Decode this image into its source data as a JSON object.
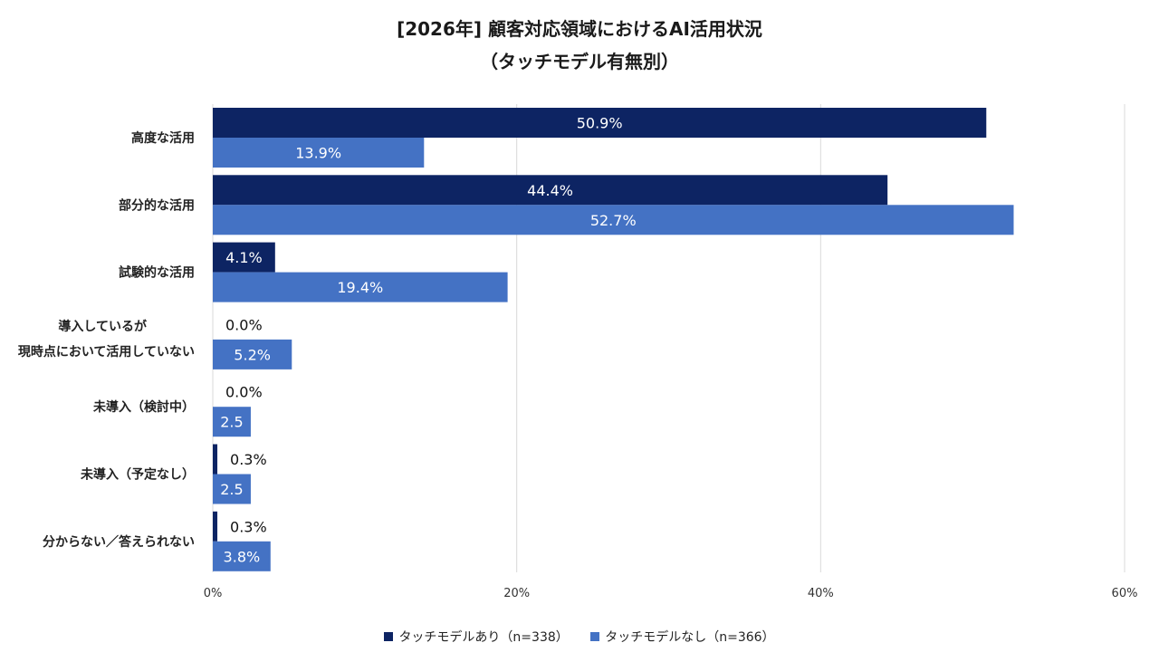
{
  "chart_data": {
    "type": "bar",
    "orientation": "horizontal",
    "title": "[2026年] 顧客対応領域におけるAI活用状況",
    "subtitle": "（タッチモデル有無別）",
    "categories": [
      [
        "高度な活用"
      ],
      [
        "部分的な活用"
      ],
      [
        "試験的な活用"
      ],
      [
        "導入しているが",
        "現時点において活用していない"
      ],
      [
        "未導入（検討中）"
      ],
      [
        "未導入（予定なし）"
      ],
      [
        "分からない／答えられない"
      ]
    ],
    "series": [
      {
        "name": "タッチモデルあり（n=338）",
        "color": "#0d2463",
        "values": [
          50.9,
          44.4,
          4.1,
          0.0,
          0.0,
          0.3,
          0.3
        ],
        "labels": [
          "50.9%",
          "44.4%",
          "4.1%",
          "0.0%",
          "0.0%",
          "0.3%",
          "0.3%"
        ]
      },
      {
        "name": "タッチモデルなし（n=366）",
        "color": "#4472c4",
        "values": [
          13.9,
          52.7,
          19.4,
          5.2,
          2.5,
          2.5,
          3.8
        ],
        "labels": [
          "13.9%",
          "52.7%",
          "19.4%",
          "5.2%",
          "2.5",
          "2.5",
          "3.8%"
        ]
      }
    ],
    "xlim": [
      0,
      60
    ],
    "xticks": [
      0,
      20,
      40,
      60
    ],
    "xtick_labels": [
      "0%",
      "20%",
      "40%",
      "60%"
    ],
    "grid": true,
    "legend_position": "bottom"
  }
}
